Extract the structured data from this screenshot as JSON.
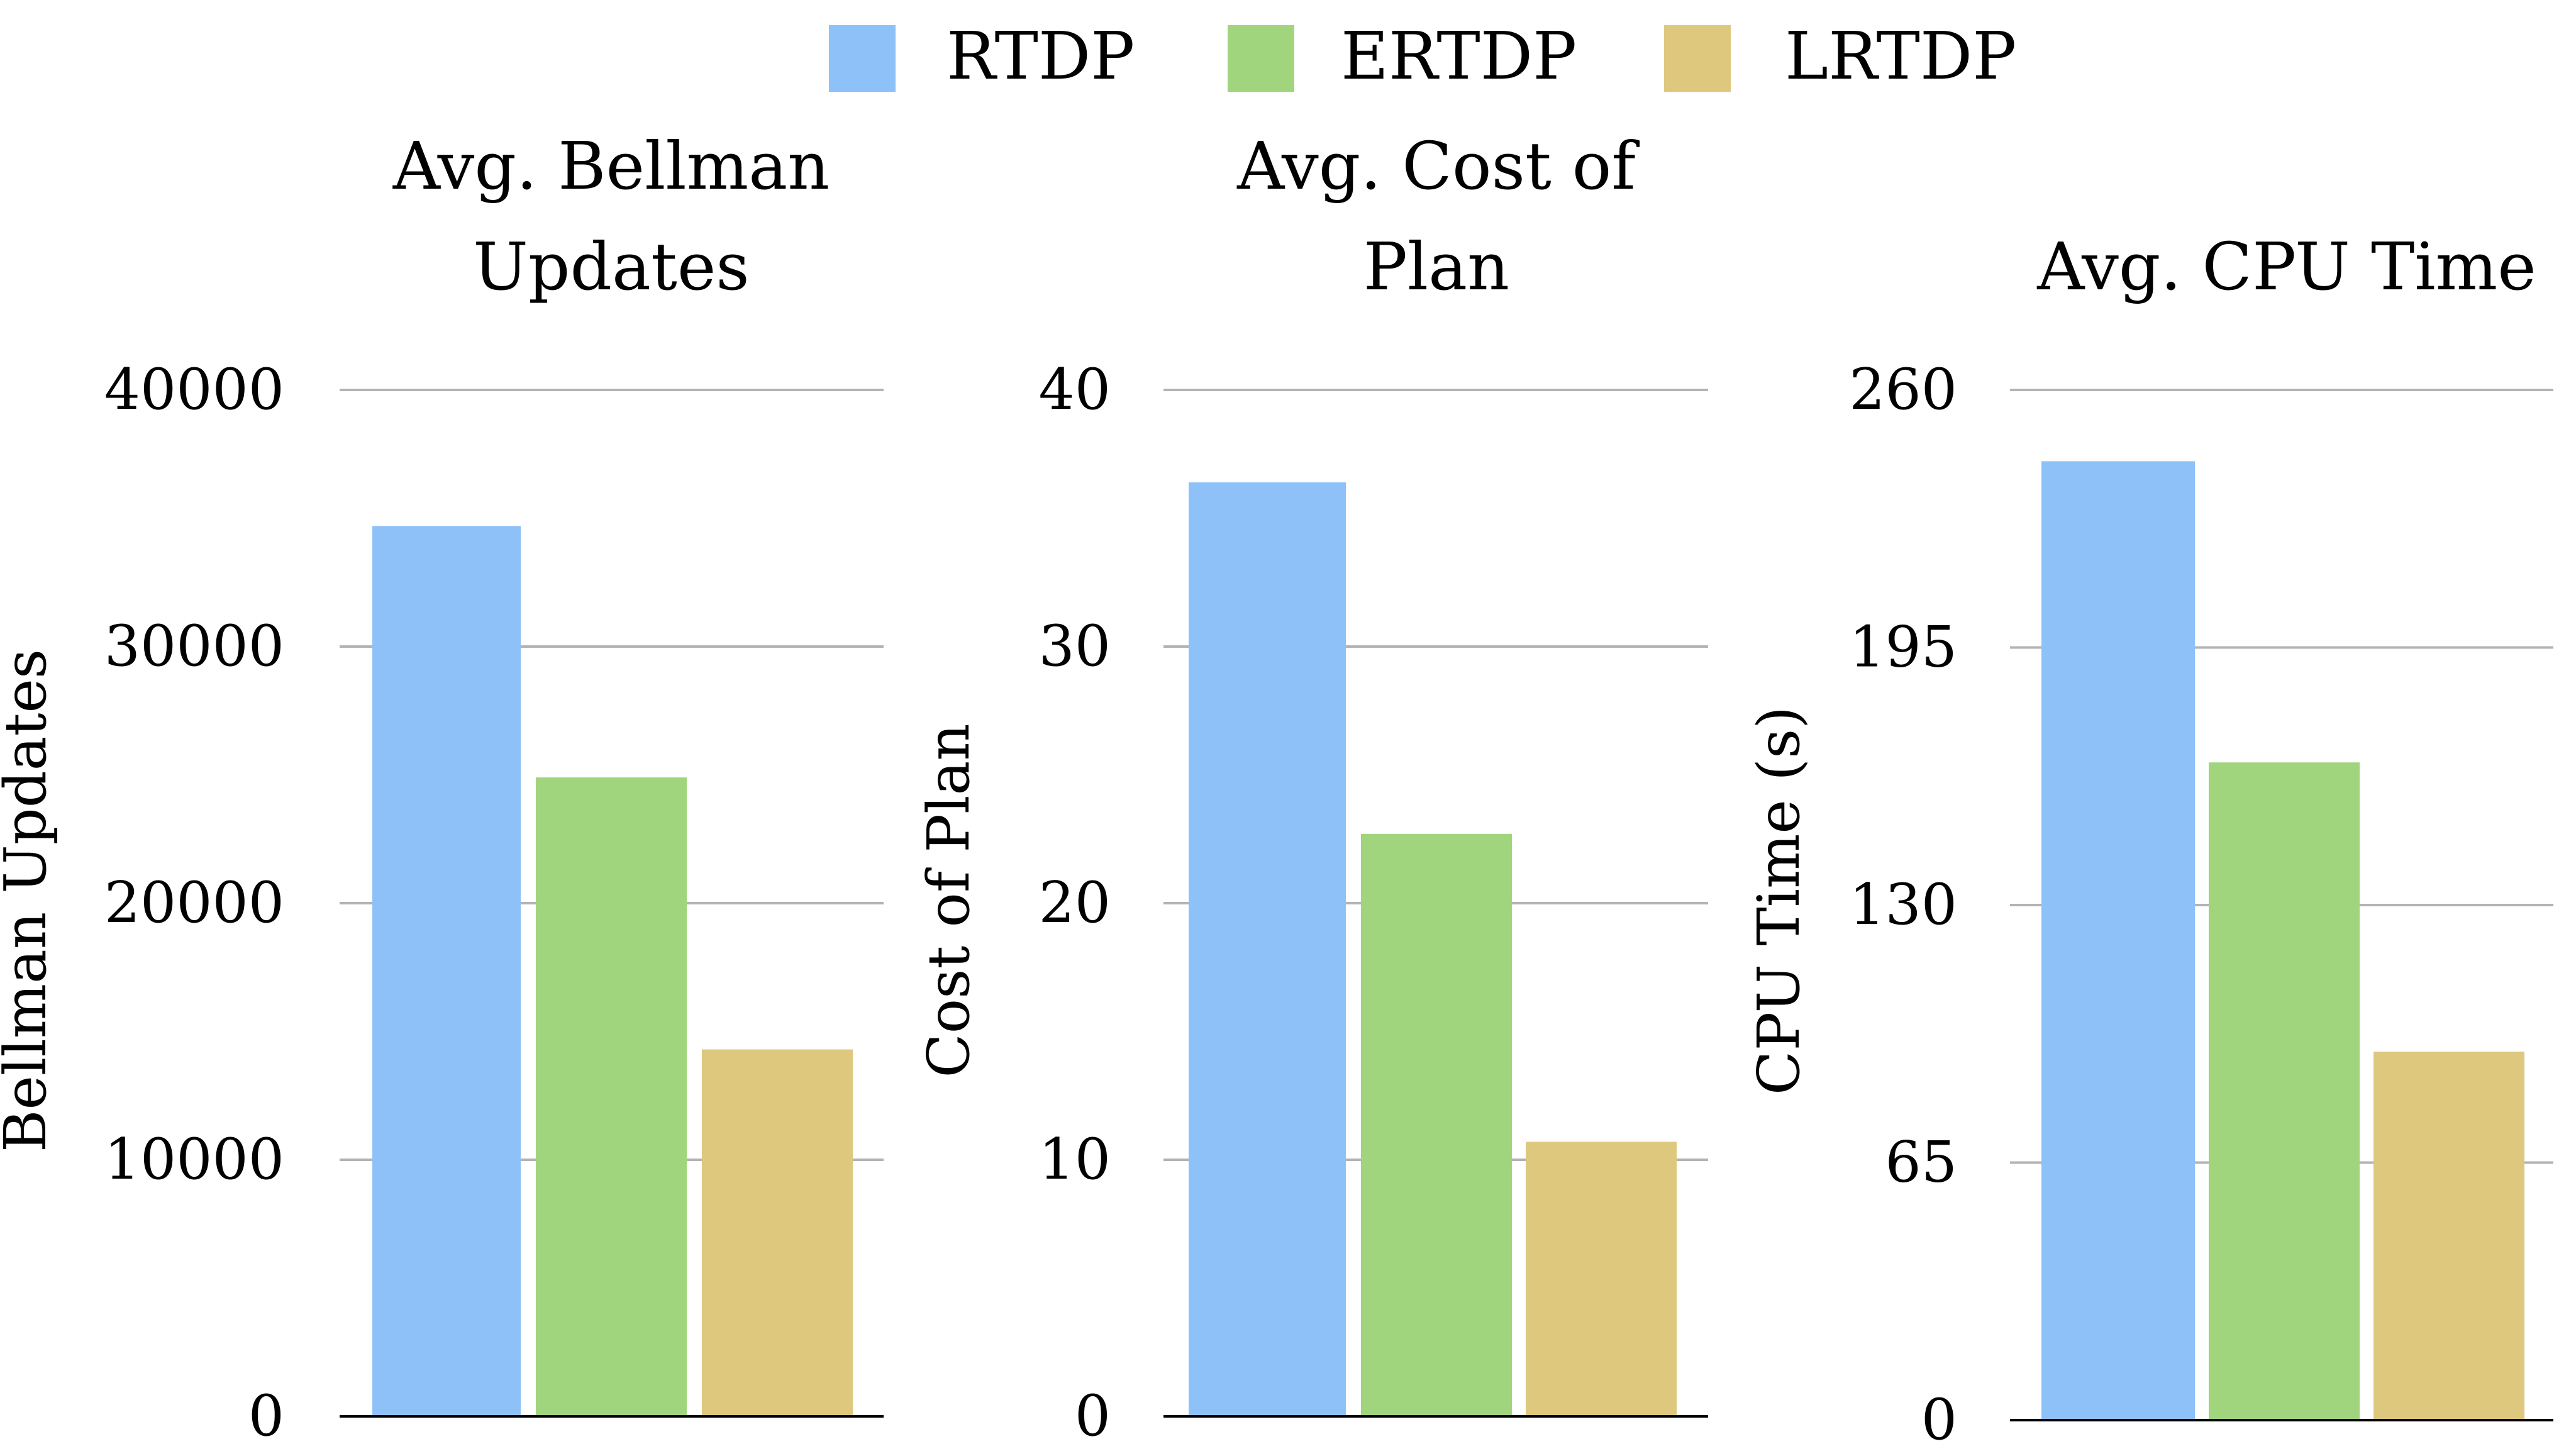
{
  "legend": {
    "items": [
      {
        "label": "RTDP",
        "color": "#8ec1f8"
      },
      {
        "label": "ERTDP",
        "color": "#a0d57e"
      },
      {
        "label": "LRTDP",
        "color": "#dec87e"
      }
    ]
  },
  "chart_data": [
    {
      "type": "bar",
      "title_lines": [
        "Avg. Bellman",
        "Updates"
      ],
      "ylabel": "Bellman Updates",
      "categories": [
        "RTDP",
        "ERTDP",
        "LRTDP"
      ],
      "values": [
        34700,
        24900,
        14300
      ],
      "ylim": [
        0,
        40000
      ],
      "yticks": [
        0,
        10000,
        20000,
        30000,
        40000
      ],
      "ytick_labels": [
        "0",
        "10000",
        "20000",
        "30000",
        "40000"
      ],
      "grid": true
    },
    {
      "type": "bar",
      "title_lines": [
        "Avg. Cost of",
        "Plan"
      ],
      "ylabel": "Cost of Plan",
      "categories": [
        "RTDP",
        "ERTDP",
        "LRTDP"
      ],
      "values": [
        36.4,
        22.7,
        10.7
      ],
      "ylim": [
        0,
        40
      ],
      "yticks": [
        0,
        10,
        20,
        30,
        40
      ],
      "ytick_labels": [
        "0",
        "10",
        "20",
        "30",
        "40"
      ],
      "grid": true
    },
    {
      "type": "bar",
      "title_lines": [
        "Avg. CPU Time"
      ],
      "ylabel": "CPU Time (s)",
      "categories": [
        "RTDP",
        "ERTDP",
        "LRTDP"
      ],
      "values": [
        242,
        166,
        93
      ],
      "ylim": [
        0,
        260
      ],
      "yticks": [
        0,
        65,
        130,
        195,
        260
      ],
      "ytick_labels": [
        "0",
        "65",
        "130",
        "195",
        "260"
      ],
      "grid": true
    }
  ]
}
